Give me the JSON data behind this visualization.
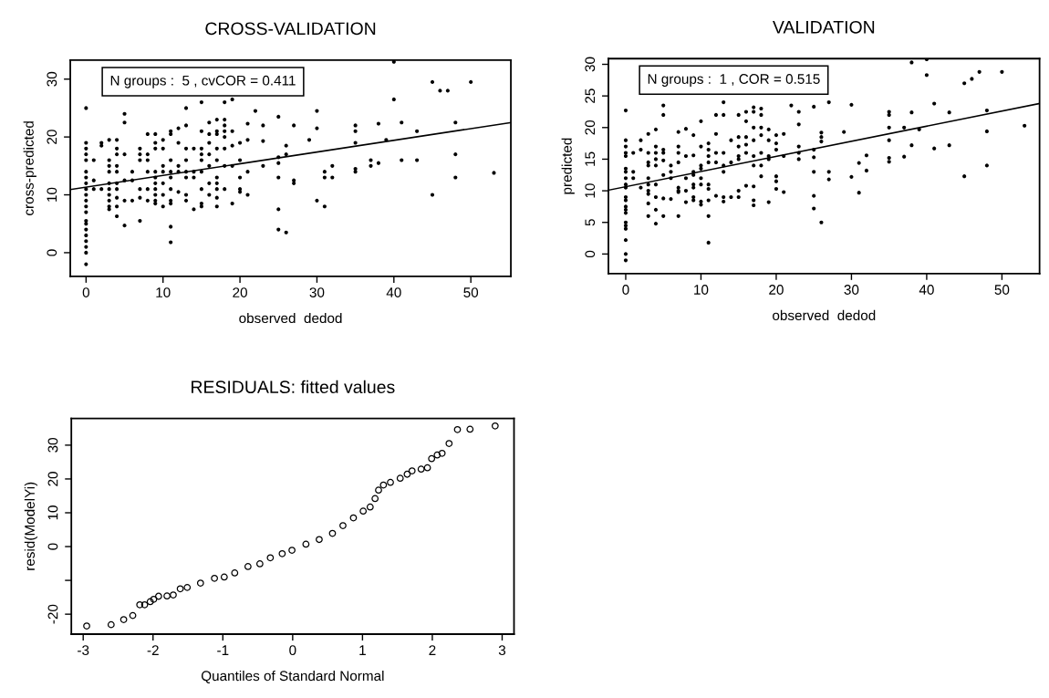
{
  "chart_data": [
    {
      "type": "scatter",
      "title": "CROSS-VALIDATION",
      "xlabel": "observed  dedod",
      "ylabel": "cross-predicted",
      "annotations": [
        "N groups :  5 , cvCOR = 0.411"
      ],
      "xlim": [
        -2.05,
        55.2
      ],
      "ylim": [
        -4.1,
        33.3
      ],
      "xticks": [
        0,
        10,
        20,
        30,
        40,
        50
      ],
      "yticks": [
        0,
        10,
        20,
        30
      ],
      "grid": false,
      "series": [
        {
          "color": "#000000",
          "x": [
            0,
            0,
            0,
            0,
            0,
            0,
            0,
            0,
            0,
            0,
            0,
            0,
            0,
            0,
            0,
            0,
            0,
            0,
            0,
            0,
            0,
            1,
            1,
            1,
            2,
            2,
            2,
            3,
            3,
            3,
            3,
            3,
            3,
            3,
            3,
            3,
            3,
            4,
            4,
            4,
            4,
            4,
            4,
            4,
            4,
            4,
            4,
            5,
            5,
            5,
            5,
            5,
            5,
            6,
            6,
            6,
            7,
            7,
            7,
            7,
            7,
            7,
            8,
            8,
            8,
            8,
            8,
            8,
            9,
            9,
            9,
            9,
            9,
            9,
            9,
            9,
            9,
            9,
            10,
            10,
            10,
            10,
            10,
            10,
            10,
            11,
            11,
            11,
            11,
            11,
            11,
            11,
            11,
            11,
            11,
            12,
            12,
            12,
            12,
            12,
            13,
            13,
            13,
            13,
            13,
            13,
            13,
            13,
            14,
            14,
            14,
            14,
            15,
            15,
            15,
            15,
            15,
            15,
            15,
            15,
            15,
            16,
            16,
            16,
            16,
            16,
            16,
            16,
            17,
            17,
            17,
            17,
            17,
            17,
            17,
            17,
            17,
            17,
            18,
            18,
            18,
            18,
            18,
            18,
            18,
            18,
            19,
            19,
            19,
            19,
            19,
            20,
            20,
            20,
            20,
            20,
            21,
            21,
            21,
            21,
            22,
            23,
            23,
            23,
            25,
            25,
            25,
            25,
            25,
            25,
            26,
            26,
            26,
            27,
            27,
            27,
            29,
            30,
            30,
            30,
            31,
            31,
            31,
            32,
            32,
            35,
            35,
            35,
            35,
            35,
            37,
            37,
            38,
            38,
            39,
            40,
            40,
            41,
            41,
            43,
            43,
            45,
            45,
            46,
            47,
            48,
            48,
            48,
            50,
            53
          ],
          "values": [
            25,
            19,
            18,
            17,
            16,
            14,
            13,
            12,
            11,
            10,
            9,
            8,
            7,
            5.5,
            5,
            4,
            3,
            2,
            1,
            0,
            -2,
            16,
            12.5,
            11,
            19,
            18.5,
            11,
            19.5,
            16,
            15,
            14,
            12,
            11,
            10,
            9,
            8,
            7.5,
            19.5,
            18,
            17,
            15,
            14,
            12,
            11,
            9.5,
            8,
            6.3,
            24,
            22.5,
            17,
            12.5,
            9,
            4.7,
            14,
            12.5,
            9,
            18,
            17,
            16,
            11,
            9.5,
            5.5,
            20.5,
            17,
            16,
            14,
            11,
            9,
            20.5,
            19,
            18,
            14,
            13,
            12,
            11,
            10,
            9,
            8.5,
            19.5,
            18,
            15,
            14,
            12,
            10,
            8,
            21,
            20.5,
            16,
            14,
            13,
            11,
            9,
            8.5,
            4.5,
            1.8,
            21.5,
            19,
            15,
            14,
            10.5,
            25,
            22,
            18,
            16,
            14,
            13,
            10,
            9,
            18,
            14,
            13,
            7.5,
            26,
            21,
            18,
            17,
            16,
            14,
            11,
            8.5,
            8,
            22.5,
            20.5,
            19,
            17,
            15,
            12,
            10,
            23,
            21,
            20.5,
            18,
            16,
            13,
            12,
            11,
            9.5,
            8,
            26,
            23,
            22,
            21,
            20,
            18,
            15,
            11,
            26.5,
            21,
            18.5,
            15,
            8.5,
            19,
            16,
            13,
            11,
            10.5,
            22.3,
            19.5,
            14,
            10,
            24.5,
            22,
            19.3,
            15,
            23.5,
            16.5,
            15.5,
            13,
            7.5,
            4,
            18.5,
            17,
            3.5,
            22,
            12.5,
            12,
            19.5,
            24.5,
            21.5,
            9,
            14,
            13,
            8,
            15,
            13,
            22,
            21,
            19,
            14.5,
            14,
            16,
            15,
            22.3,
            15.5,
            19.5,
            33,
            26.5,
            22.5,
            16,
            21,
            16,
            29.5,
            10,
            28,
            28,
            22.5,
            17,
            13,
            29.5,
            13.8
          ]
        },
        {
          "type": "line",
          "color": "#000000",
          "x": [
            -2.05,
            55.2
          ],
          "values": [
            10.9,
            22.5
          ]
        }
      ]
    },
    {
      "type": "scatter",
      "title": "VALIDATION",
      "xlabel": "observed  dedod",
      "ylabel": "predicted",
      "annotations": [
        "N groups :  1 , COR = 0.515"
      ],
      "xlim": [
        -2.3,
        55
      ],
      "ylim": [
        -3.1,
        30.9
      ],
      "xticks": [
        0,
        10,
        20,
        30,
        40,
        50
      ],
      "yticks": [
        0,
        5,
        10,
        15,
        20,
        25,
        30
      ],
      "grid": false,
      "series": [
        {
          "color": "#000000",
          "x": [
            0,
            0,
            0,
            0,
            0,
            0,
            0,
            0,
            0,
            0,
            0,
            0,
            0,
            0,
            0,
            0,
            0,
            0,
            0,
            0,
            0,
            1,
            1,
            1,
            2,
            2,
            2,
            3,
            3,
            3,
            3,
            3,
            3,
            3,
            3,
            3,
            3,
            4,
            4,
            4,
            4,
            4,
            4,
            4,
            4,
            4,
            5,
            5,
            5,
            5,
            5,
            5,
            5,
            5,
            6,
            6,
            6,
            6,
            7,
            7,
            7,
            7,
            7,
            7,
            7,
            7,
            8,
            8,
            8,
            8,
            8,
            9,
            9,
            9,
            9,
            9,
            9,
            9,
            9,
            10,
            10,
            10,
            10,
            10,
            10,
            10,
            10,
            11,
            11,
            11,
            11,
            11,
            11,
            11,
            11,
            11,
            12,
            12,
            12,
            12,
            12,
            13,
            13,
            13,
            13,
            13,
            13,
            13,
            14,
            14,
            14,
            15,
            15,
            15,
            15,
            15,
            15,
            15,
            16,
            16,
            16,
            16,
            16,
            16,
            17,
            17,
            17,
            17,
            17,
            17,
            17,
            17,
            17,
            18,
            18,
            18,
            18,
            18,
            18,
            18,
            19,
            19,
            19,
            19,
            19,
            20,
            20,
            20,
            20,
            20,
            20,
            21,
            21,
            21,
            22,
            23,
            23,
            23,
            23,
            23,
            25,
            25,
            25,
            25,
            25,
            25,
            26,
            26,
            26,
            26,
            27,
            27,
            27,
            29,
            30,
            30,
            31,
            31,
            32,
            32,
            35,
            35,
            35,
            35,
            35,
            35,
            37,
            37,
            38,
            38,
            38,
            39,
            40,
            40,
            41,
            41,
            43,
            43,
            45,
            45,
            46,
            47,
            48,
            48,
            48,
            50,
            53
          ],
          "values": [
            22.7,
            18,
            17,
            16,
            15.5,
            13.5,
            13,
            12,
            11,
            10.5,
            9,
            8.5,
            7.5,
            7,
            6.5,
            5,
            4.5,
            4,
            2.2,
            0,
            -1,
            16,
            13,
            12,
            18,
            16.5,
            10.5,
            19,
            16,
            14.5,
            14,
            12,
            11,
            10,
            9.5,
            8,
            6,
            19.7,
            17,
            16,
            15,
            14,
            11,
            9,
            7,
            4.8,
            23.5,
            22,
            16.5,
            16,
            14.8,
            12.5,
            8.8,
            6,
            14,
            13,
            12,
            8.7,
            19.3,
            17,
            16,
            14.5,
            10.5,
            10,
            9.8,
            6,
            19.8,
            15.5,
            12,
            10,
            8.2,
            18.8,
            15.6,
            13,
            12.5,
            11,
            10.5,
            9,
            8.5,
            21,
            17,
            14,
            13.5,
            12,
            11,
            8.3,
            7.8,
            17.5,
            16.5,
            15.5,
            14.5,
            11,
            10.3,
            8.5,
            6,
            1.8,
            22,
            19,
            16,
            14.5,
            9.2,
            24,
            22,
            16,
            14,
            13,
            9,
            8.3,
            18,
            14.5,
            9,
            22,
            18.5,
            17,
            15.5,
            15,
            10,
            9,
            22.5,
            21,
            18.5,
            17.3,
            16,
            10.8,
            23.2,
            22.5,
            20,
            18,
            15.5,
            14,
            10.7,
            8.5,
            7.7,
            23,
            22,
            20,
            18.8,
            16,
            14,
            12.3,
            19.7,
            18,
            15.5,
            15,
            8.2,
            18.8,
            17.5,
            16.5,
            12.3,
            11.5,
            10.3,
            19,
            15.5,
            9.8,
            23.5,
            22.5,
            20.5,
            17,
            16,
            15,
            23.3,
            16.5,
            15.3,
            13,
            9.2,
            7.2,
            19.2,
            18.5,
            17.8,
            5,
            24,
            13,
            11.8,
            19.3,
            23.6,
            12.2,
            14.4,
            9.7,
            15.6,
            13.2,
            22.5,
            22,
            20,
            18,
            15.2,
            14.6,
            20,
            15.4,
            30.3,
            22.4,
            17.2,
            19.7,
            30.8,
            28.3,
            23.8,
            16.7,
            22.4,
            17.2,
            27,
            12.3,
            27.7,
            28.8,
            22.7,
            19.4,
            14,
            28.8,
            20.3
          ]
        },
        {
          "type": "line",
          "color": "#000000",
          "x": [
            -2.3,
            55
          ],
          "values": [
            10.1,
            23.8
          ]
        }
      ]
    },
    {
      "type": "scatter",
      "title": "RESIDUALS: fitted values",
      "xlabel": "Quantiles of Standard Normal",
      "ylabel": "resid(ModelYi)",
      "xlim": [
        -3.17,
        3.17
      ],
      "ylim": [
        -25.9,
        37.9
      ],
      "xticks": [
        -3,
        -2,
        -1,
        0,
        1,
        2,
        3
      ],
      "yticks": [
        -20,
        {
          "value": -10,
          "label": null
        },
        0,
        10,
        20,
        30
      ],
      "grid": false,
      "marker": "circle",
      "series": [
        {
          "color": "#000000",
          "x": [
            -2.95,
            -2.6,
            -2.42,
            -2.29,
            -2.19,
            -2.12,
            -2.04,
            -1.99,
            -1.92,
            -1.8,
            -1.71,
            -1.61,
            -1.51,
            -1.32,
            -1.12,
            -0.98,
            -0.83,
            -0.64,
            -0.47,
            -0.32,
            -0.15,
            -0.01,
            0.19,
            0.38,
            0.57,
            0.72,
            0.87,
            1.01,
            1.11,
            1.18,
            1.23,
            1.3,
            1.4,
            1.54,
            1.64,
            1.71,
            1.84,
            1.93,
            1.99,
            2.07,
            2.14,
            2.24,
            2.36,
            2.54,
            2.9
          ],
          "values": [
            -23.5,
            -23.1,
            -21.6,
            -20.4,
            -17.2,
            -17.2,
            -16.3,
            -15.6,
            -14.7,
            -14.6,
            -14.3,
            -12.5,
            -12.1,
            -10.8,
            -9.4,
            -9.0,
            -7.8,
            -5.9,
            -5.1,
            -3.3,
            -2.1,
            -1.1,
            0.7,
            2.1,
            3.9,
            6.2,
            8.5,
            10.5,
            11.7,
            14.2,
            16.7,
            18.2,
            19.0,
            20.2,
            21.4,
            22.4,
            22.9,
            23.3,
            26.0,
            27.1,
            27.6,
            30.5,
            34.6,
            34.7,
            35.7
          ]
        }
      ]
    }
  ]
}
